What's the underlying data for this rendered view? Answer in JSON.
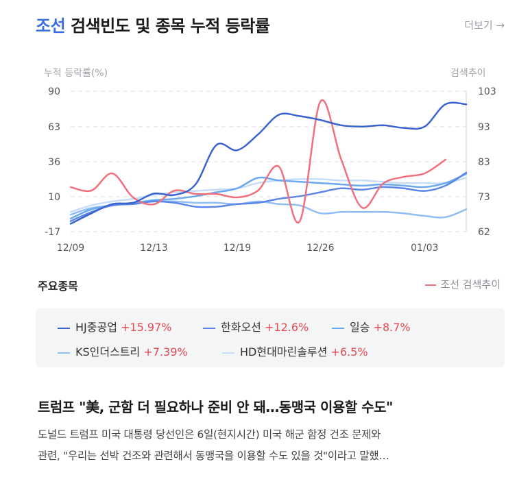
{
  "header": {
    "keyword": "조선",
    "title_rest": "검색빈도 및 종목 누적 등락률",
    "more_label": "더보기 →"
  },
  "chart_data": {
    "type": "line",
    "left_axis_title": "누적 등락률(%)",
    "right_axis_title": "검색추이",
    "left_ticks": [
      "90",
      "63",
      "36",
      "10",
      "-17"
    ],
    "right_ticks": [
      "103",
      "93",
      "83",
      "73",
      "62"
    ],
    "x_ticks": [
      "12/09",
      "12/13",
      "12/19",
      "12/26",
      "01/03"
    ],
    "ylim_left": [
      -17,
      90
    ],
    "ylim_right": [
      62,
      103
    ],
    "grid": true,
    "x": [
      "12/09",
      "12/10",
      "12/11",
      "12/12",
      "12/13",
      "12/16",
      "12/17",
      "12/18",
      "12/19",
      "12/20",
      "12/23",
      "12/24",
      "12/26",
      "12/27",
      "12/30",
      "12/31",
      "01/02",
      "01/03",
      "01/06",
      "01/07"
    ],
    "series": [
      {
        "name": "HJ중공업",
        "axis": "left",
        "color": "#3b63d0",
        "values": [
          -11,
          -3,
          4,
          5,
          12,
          11,
          19,
          49,
          45,
          57,
          72,
          71,
          68,
          64,
          63,
          64,
          62,
          63,
          80,
          80
        ]
      },
      {
        "name": "한화오션",
        "axis": "left",
        "color": "#5b86e8",
        "values": [
          -9,
          -2,
          3,
          4,
          6,
          5,
          2,
          2,
          4,
          5,
          8,
          10,
          13,
          16,
          15,
          17,
          16,
          14,
          18,
          28
        ]
      },
      {
        "name": "일승",
        "axis": "left",
        "color": "#6aa8f0",
        "values": [
          -7,
          0,
          3,
          5,
          7,
          8,
          10,
          13,
          16,
          24,
          22,
          21,
          20,
          19,
          18,
          19,
          18,
          17,
          20,
          27
        ]
      },
      {
        "name": "KS인더스트리",
        "axis": "left",
        "color": "#8fbdf4",
        "values": [
          -4,
          1,
          3,
          5,
          6,
          6,
          5,
          5,
          4,
          6,
          4,
          3,
          -3,
          -2,
          -2,
          -2,
          -3,
          -5,
          -6,
          0
        ]
      },
      {
        "name": "HD현대마린솔루션",
        "axis": "left",
        "color": "#c5dcfa",
        "values": [
          -2,
          3,
          6,
          8,
          11,
          13,
          14,
          15,
          16,
          20,
          22,
          23,
          23,
          22,
          22,
          21,
          20,
          20,
          20,
          24
        ]
      },
      {
        "name": "조선 검색추이",
        "axis": "right",
        "color": "#f0707c",
        "values": [
          75,
          74,
          79,
          72,
          70,
          74,
          73,
          73,
          72,
          74,
          81,
          65,
          100,
          83,
          69,
          76,
          78,
          79,
          83,
          null
        ]
      }
    ]
  },
  "stocks_section": {
    "title": "주요종목",
    "search_legend": "조선 검색추이",
    "items": [
      {
        "name": "HJ중공업",
        "change": "+15.97%",
        "color": "#3b63d0"
      },
      {
        "name": "한화오션",
        "change": "+12.6%",
        "color": "#5b86e8"
      },
      {
        "name": "일승",
        "change": "+8.7%",
        "color": "#6aa8f0"
      },
      {
        "name": "KS인더스트리",
        "change": "+7.39%",
        "color": "#8fbdf4"
      },
      {
        "name": "HD현대마린솔루션",
        "change": "+6.5%",
        "color": "#c5dcfa"
      }
    ]
  },
  "news": {
    "title": "트럼프 \"美, 군함 더 필요하나 준비 안 돼…동맹국 이용할 수도\"",
    "line1": "도널드 트럼프 미국 대통령 당선인은 6일(현지시간) 미국 해군 함정 건조 문제와",
    "line2": "관련, \"우리는 선박 건조와 관련해서 동맹국을 이용할 수도 있을 것\"이라고 말했…"
  }
}
